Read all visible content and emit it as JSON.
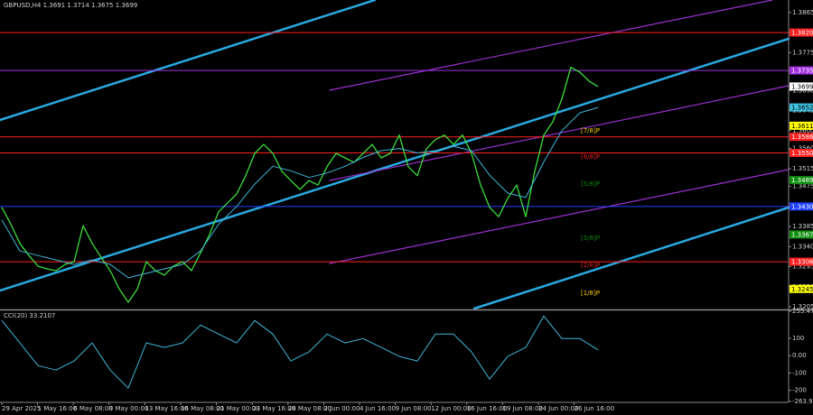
{
  "chart_data": [
    {
      "type": "line",
      "title": "GBPUSD,H4  1.3691 1.3714 1.3675 1.3699",
      "ylim": [
        1.3201,
        1.3893
      ],
      "yticks": [
        1.3865,
        {
          "value": 1.382,
          "label": "1.3820"
        },
        1.3775,
        1.3735,
        {
          "value": 1.369,
          "label": "1.3690"
        },
        1.3645,
        {
          "value": 1.36,
          "label": "1.3600"
        },
        {
          "value": 1.356,
          "label": "1.3560"
        },
        1.3515,
        1.3475,
        {
          "value": 1.343,
          "label": "1.3430"
        },
        1.3385,
        {
          "value": 1.334,
          "label": "1.3340"
        },
        1.3295,
        {
          "value": 1.325,
          "label": "1.3250"
        },
        1.3205
      ],
      "x_labels": [
        "29 Apr 2025",
        "1 May 16:00",
        "6 May 08:00",
        "9 May 00:00",
        "13 May 16:00",
        "16 May 08:00",
        "21 May 00:00",
        "23 May 16:00",
        "28 May 08:00",
        "2 Jun 00:00",
        "4 Jun 16:00",
        "9 Jun 08:00",
        "12 Jun 00:00",
        "16 Jun 16:00",
        "19 Jun 08:00",
        "24 Jun 00:00",
        "26 Jun 16:00"
      ],
      "series": [
        {
          "color": "#3cdc3c",
          "width": 1.3,
          "values": [
            1.3428,
            1.339,
            1.3347,
            1.332,
            1.3296,
            1.329,
            1.3286,
            1.33,
            1.3306,
            1.3387,
            1.3347,
            1.3316,
            1.3286,
            1.3245,
            1.3215,
            1.3245,
            1.3306,
            1.3286,
            1.3276,
            1.3296,
            1.3306,
            1.3286,
            1.3326,
            1.3367,
            1.3418,
            1.3438,
            1.3458,
            1.3499,
            1.3549,
            1.3569,
            1.3549,
            1.3509,
            1.3488,
            1.3468,
            1.3488,
            1.3478,
            1.3519,
            1.3549,
            1.3539,
            1.3529,
            1.3549,
            1.3569,
            1.3539,
            1.3549,
            1.359,
            1.3519,
            1.3499,
            1.3559,
            1.358,
            1.359,
            1.3569,
            1.359,
            1.3549,
            1.3478,
            1.3428,
            1.3407,
            1.3448,
            1.3478,
            1.3407,
            1.3509,
            1.359,
            1.362,
            1.3671,
            1.3742,
            1.3731,
            1.3711,
            1.3699
          ]
        },
        {
          "color": "#3fb6d8",
          "width": 1,
          "values": [
            1.34,
            1.333,
            1.332,
            1.331,
            1.33,
            1.331,
            1.33,
            1.327,
            1.328,
            1.329,
            1.33,
            1.333,
            1.339,
            1.343,
            1.348,
            1.352,
            1.351,
            1.3495,
            1.3505,
            1.352,
            1.354,
            1.3555,
            1.356,
            1.355,
            1.3555,
            1.3565,
            1.3555,
            1.35,
            1.346,
            1.345,
            1.353,
            1.36,
            1.364,
            1.3652
          ]
        }
      ],
      "levels": [
        {
          "value": 1.382,
          "label": "1.3820",
          "color": "#ff2020",
          "line": true
        },
        {
          "value": 1.3735,
          "label": "1.3735",
          "color": "#a030e0",
          "line": true
        },
        {
          "value": 1.3699,
          "label": "1.3699",
          "color": "#ffffff",
          "line": false
        },
        {
          "value": 1.3652,
          "label": "1.3652",
          "color": "#40c0e0",
          "line": false
        },
        {
          "value": 1.3611,
          "label": "1.3611",
          "color": "#ffff00",
          "line": false
        },
        {
          "value": 1.3586,
          "label": "1.3586",
          "color": "#ff2020",
          "line": true
        },
        {
          "value": 1.355,
          "label": "1.3550",
          "color": "#ff2020",
          "line": true
        },
        {
          "value": 1.3489,
          "label": "1.3489",
          "color": "#109010",
          "line": false
        },
        {
          "value": 1.343,
          "label": "1.3430",
          "color": "#2040ff",
          "line": true
        },
        {
          "value": 1.3367,
          "label": "1.3367",
          "color": "#109010",
          "line": false
        },
        {
          "value": 1.3306,
          "label": "1.3306",
          "color": "#ff2020",
          "line": true
        },
        {
          "value": 1.3245,
          "label": "1.3245",
          "color": "#ffff00",
          "line": false
        }
      ],
      "annotations": [
        "[7/8]P",
        "[6/8]P",
        "[5/8]P",
        "[3/8]P",
        "[2/8]P",
        "[1/8]P"
      ]
    },
    {
      "type": "line",
      "title": "CCI(20) 33.2107",
      "ylim": [
        -263.996,
        255.4768
      ],
      "yticks": [
        255.4768,
        100,
        {
          "value": 0,
          "label": "0.00"
        },
        -100,
        -200,
        -263.996
      ],
      "series": [
        {
          "color": "#3fb6d8",
          "width": 1,
          "values": [
            202,
            73,
            -57,
            -83,
            -31,
            73,
            -83,
            -187,
            73,
            47,
            73,
            176,
            124,
            73,
            202,
            124,
            -31,
            21,
            124,
            73,
            98,
            47,
            -5,
            -31,
            124,
            124,
            21,
            -135,
            -5,
            47,
            228,
            98,
            98,
            33
          ]
        }
      ]
    }
  ]
}
